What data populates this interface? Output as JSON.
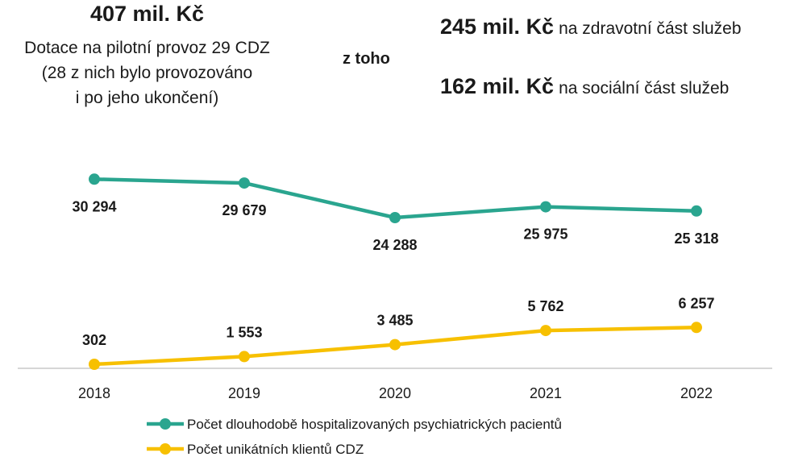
{
  "header": {
    "total_amount": "407 mil. Kč",
    "total_desc_lines": [
      "Dotace na pilotní provoz 29 CDZ",
      "(28 z nich bylo provozováno",
      "i po jeho ukončení)"
    ],
    "of_which": "z toho",
    "split": [
      {
        "amount": "245 mil. Kč",
        "text": "na zdravotní část služeb"
      },
      {
        "amount": "162 mil. Kč",
        "text": "na sociální část služeb"
      }
    ]
  },
  "chart_data": {
    "type": "line",
    "categories": [
      "2018",
      "2019",
      "2020",
      "2021",
      "2022"
    ],
    "series": [
      {
        "name": "Počet dlouhodobě hospitalizovaných psychiatrických pacientů",
        "color": "#2aa58f",
        "values": [
          30294,
          29679,
          24288,
          25975,
          25318
        ],
        "labels": [
          "30 294",
          "29 679",
          "24 288",
          "25 975",
          "25 318"
        ],
        "label_position": [
          "below",
          "below",
          "below",
          "below",
          "below"
        ]
      },
      {
        "name": "Počet unikátních klientů CDZ",
        "color": "#f7c000",
        "values": [
          302,
          1553,
          3485,
          5762,
          6257
        ],
        "labels": [
          "302",
          "1 553",
          "3 485",
          "5 762",
          "6 257"
        ],
        "label_position": [
          "above",
          "above",
          "above",
          "above",
          "above"
        ]
      }
    ],
    "legend": "bottom"
  }
}
